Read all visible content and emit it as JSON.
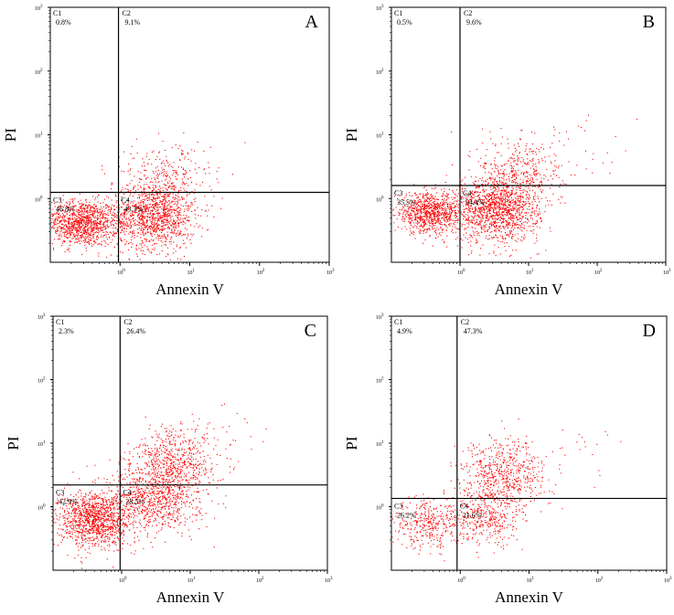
{
  "chart_data": [
    {
      "type": "scatter",
      "panel_label": "A",
      "xlabel": "Annexin V",
      "ylabel": "PI",
      "x_scale": "log",
      "y_scale": "log",
      "xlim": [
        0.1,
        1000
      ],
      "ylim": [
        0.1,
        1000
      ],
      "x_ticks": [
        {
          "v": 1,
          "e": "0"
        },
        {
          "v": 10,
          "e": "1"
        },
        {
          "v": 100,
          "e": "2"
        },
        {
          "v": 1000,
          "e": "3"
        }
      ],
      "y_ticks": [
        {
          "v": 1,
          "e": "0"
        },
        {
          "v": 10,
          "e": "1"
        },
        {
          "v": 100,
          "e": "2"
        },
        {
          "v": 1000,
          "e": "3"
        }
      ],
      "tick_base": "10",
      "gate": {
        "x": 0.95,
        "y": 1.25
      },
      "quadrants": [
        {
          "name": "C1",
          "percent": "0.8%",
          "pos": "ul"
        },
        {
          "name": "C2",
          "percent": "9.1%",
          "pos": "ur"
        },
        {
          "name": "C3",
          "percent": "46.8%",
          "pos": "ll"
        },
        {
          "name": "C4",
          "percent": "43.3%",
          "pos": "lr"
        }
      ],
      "clusters": [
        {
          "cx": 0.28,
          "cy": 0.42,
          "sx": 0.26,
          "sy": 0.18,
          "n": 1100
        },
        {
          "cx": 3.0,
          "cy": 0.55,
          "sx": 0.3,
          "sy": 0.26,
          "n": 1200
        },
        {
          "cx": 5.0,
          "cy": 2.2,
          "sx": 0.3,
          "sy": 0.25,
          "n": 220
        },
        {
          "cx": 2.0,
          "cy": 4.0,
          "sx": 0.4,
          "sy": 0.2,
          "n": 25
        }
      ],
      "color": "#ff0000"
    },
    {
      "type": "scatter",
      "panel_label": "B",
      "xlabel": "Annexin V",
      "ylabel": "PI",
      "x_scale": "log",
      "y_scale": "log",
      "xlim": [
        0.1,
        1000
      ],
      "ylim": [
        0.1,
        1000
      ],
      "x_ticks": [
        {
          "v": 1,
          "e": "0"
        },
        {
          "v": 10,
          "e": "1"
        },
        {
          "v": 100,
          "e": "2"
        },
        {
          "v": 1000,
          "e": "3"
        }
      ],
      "y_ticks": [
        {
          "v": 1,
          "e": "0"
        },
        {
          "v": 10,
          "e": "1"
        },
        {
          "v": 100,
          "e": "2"
        },
        {
          "v": 1000,
          "e": "3"
        }
      ],
      "tick_base": "10",
      "gate": {
        "x": 1.0,
        "y": 1.6
      },
      "quadrants": [
        {
          "name": "C1",
          "percent": "0.5%",
          "pos": "ul"
        },
        {
          "name": "C2",
          "percent": "9.6%",
          "pos": "ur"
        },
        {
          "name": "C3",
          "percent": "35.5%",
          "pos": "ll"
        },
        {
          "name": "C4",
          "percent": "54.4%",
          "pos": "lr"
        }
      ],
      "clusters": [
        {
          "cx": 0.35,
          "cy": 0.6,
          "sx": 0.25,
          "sy": 0.15,
          "n": 900
        },
        {
          "cx": 3.5,
          "cy": 0.7,
          "sx": 0.3,
          "sy": 0.26,
          "n": 1350
        },
        {
          "cx": 8.0,
          "cy": 2.8,
          "sx": 0.32,
          "sy": 0.28,
          "n": 320
        },
        {
          "cx": 30.0,
          "cy": 5.0,
          "sx": 0.4,
          "sy": 0.3,
          "n": 40
        }
      ],
      "color": "#ff0000"
    },
    {
      "type": "scatter",
      "panel_label": "C",
      "xlabel": "Annexin V",
      "ylabel": "PI",
      "x_scale": "log",
      "y_scale": "log",
      "xlim": [
        0.1,
        1000
      ],
      "ylim": [
        0.1,
        1000
      ],
      "x_ticks": [
        {
          "v": 1,
          "e": "0"
        },
        {
          "v": 10,
          "e": "1"
        },
        {
          "v": 100,
          "e": "2"
        },
        {
          "v": 1000,
          "e": "3"
        }
      ],
      "y_ticks": [
        {
          "v": 1,
          "e": "0"
        },
        {
          "v": 10,
          "e": "1"
        },
        {
          "v": 100,
          "e": "2"
        },
        {
          "v": 1000,
          "e": "3"
        }
      ],
      "tick_base": "10",
      "gate": {
        "x": 0.95,
        "y": 2.2
      },
      "quadrants": [
        {
          "name": "C1",
          "percent": "2.3%",
          "pos": "ul"
        },
        {
          "name": "C2",
          "percent": "26.4%",
          "pos": "ur"
        },
        {
          "name": "C3",
          "percent": "42.9%",
          "pos": "ll"
        },
        {
          "name": "C4",
          "percent": "28.5%",
          "pos": "lr"
        }
      ],
      "clusters": [
        {
          "cx": 0.4,
          "cy": 0.65,
          "sx": 0.27,
          "sy": 0.22,
          "n": 1200
        },
        {
          "cx": 3.0,
          "cy": 1.4,
          "sx": 0.32,
          "sy": 0.27,
          "n": 800
        },
        {
          "cx": 6.0,
          "cy": 5.0,
          "sx": 0.3,
          "sy": 0.28,
          "n": 600
        },
        {
          "cx": 25.0,
          "cy": 12.0,
          "sx": 0.4,
          "sy": 0.3,
          "n": 40
        }
      ],
      "color": "#ff0000"
    },
    {
      "type": "scatter",
      "panel_label": "D",
      "xlabel": "Annexin V",
      "ylabel": "PI",
      "x_scale": "log",
      "y_scale": "log",
      "xlim": [
        0.1,
        1000
      ],
      "ylim": [
        0.1,
        1000
      ],
      "x_ticks": [
        {
          "v": 1,
          "e": "0"
        },
        {
          "v": 10,
          "e": "1"
        },
        {
          "v": 100,
          "e": "2"
        },
        {
          "v": 1000,
          "e": "3"
        }
      ],
      "y_ticks": [
        {
          "v": 1,
          "e": "0"
        },
        {
          "v": 10,
          "e": "1"
        },
        {
          "v": 100,
          "e": "2"
        },
        {
          "v": 1000,
          "e": "3"
        }
      ],
      "tick_base": "10",
      "gate": {
        "x": 0.9,
        "y": 1.35
      },
      "quadrants": [
        {
          "name": "C1",
          "percent": "4.9%",
          "pos": "ul"
        },
        {
          "name": "C2",
          "percent": "47.3%",
          "pos": "ur"
        },
        {
          "name": "C3",
          "percent": "26.2%",
          "pos": "ll"
        },
        {
          "name": "C4",
          "percent": "21.6%",
          "pos": "lr"
        }
      ],
      "clusters": [
        {
          "cx": 0.35,
          "cy": 0.55,
          "sx": 0.28,
          "sy": 0.2,
          "n": 380
        },
        {
          "cx": 2.5,
          "cy": 0.6,
          "sx": 0.25,
          "sy": 0.2,
          "n": 300
        },
        {
          "cx": 4.0,
          "cy": 3.0,
          "sx": 0.3,
          "sy": 0.28,
          "n": 650
        },
        {
          "cx": 30.0,
          "cy": 8.0,
          "sx": 0.45,
          "sy": 0.3,
          "n": 30
        }
      ],
      "color": "#ff0000"
    }
  ]
}
